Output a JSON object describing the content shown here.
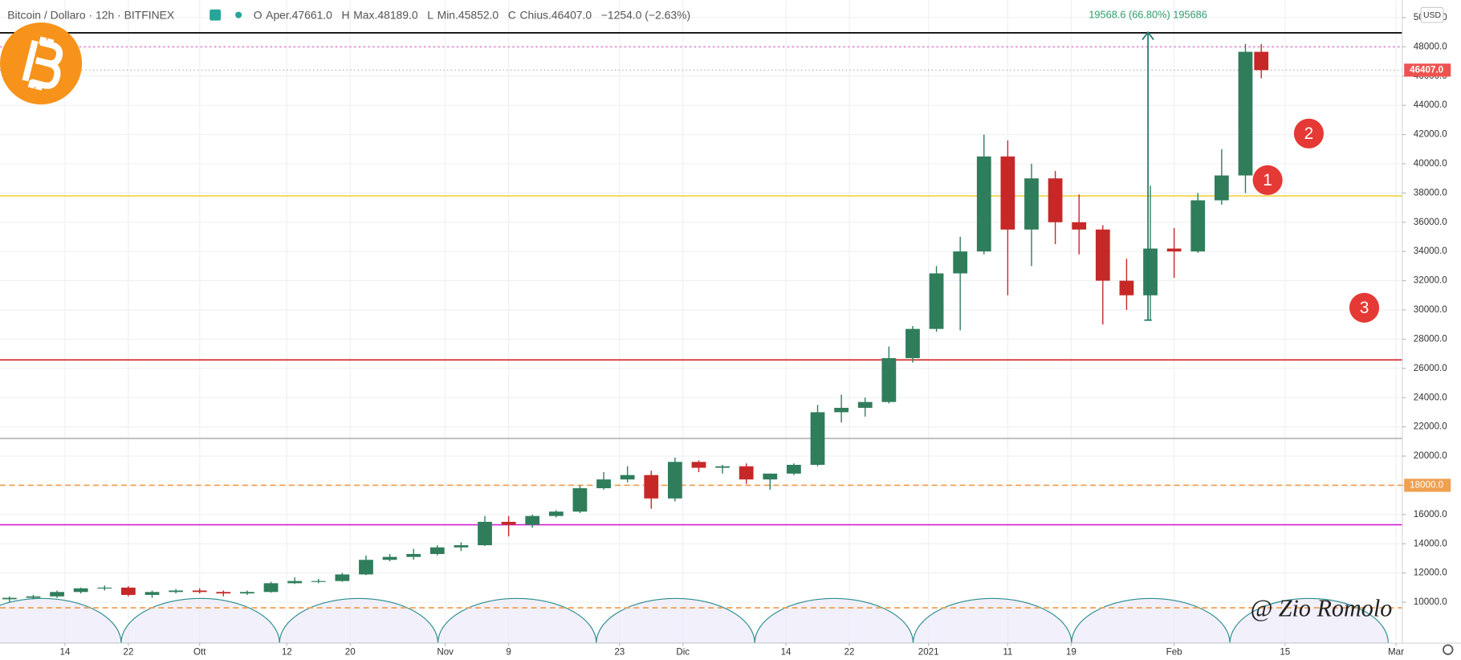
{
  "header": {
    "symbol": "Bitcoin / Dollaro · 12h · BITFINEX",
    "items": [
      "O",
      "Aper.47661.0",
      "H",
      "Max.48189.0",
      "L",
      "Min.45852.0",
      "C",
      "Chius.46407.0",
      "−1254.0 (−2.63%)"
    ]
  },
  "currency": "USD",
  "watermark": "@ Zio Romolo",
  "chart_data": {
    "type": "candlestick",
    "up_color": "#2f7d5b",
    "down_color": "#c62828",
    "x": [
      1,
      4,
      7,
      10,
      13,
      16,
      19,
      22,
      25,
      28,
      31,
      34,
      37,
      40,
      43,
      46,
      49,
      52,
      55,
      58,
      61,
      64,
      67,
      70,
      73,
      76,
      79,
      82,
      85,
      88,
      91,
      94,
      97,
      100,
      103,
      106,
      109,
      112,
      115,
      118,
      121,
      124,
      127,
      130,
      133,
      136,
      139,
      142,
      145,
      148,
      151,
      154,
      157,
      159
    ],
    "open": [
      10200,
      10300,
      10400,
      10700,
      10950,
      11000,
      10500,
      10700,
      10800,
      10700,
      10600,
      10700,
      11300,
      11450,
      11450,
      11900,
      12900,
      13100,
      13300,
      13750,
      13900,
      15500,
      15300,
      15900,
      16200,
      17800,
      18400,
      18700,
      17100,
      19600,
      19200,
      19300,
      18400,
      18800,
      19400,
      23000,
      23300,
      23700,
      26700,
      28700,
      32500,
      34000,
      40500,
      35500,
      39000,
      36000,
      35500,
      32000,
      31000,
      34200,
      34000,
      37500,
      39200,
      47661
    ],
    "high": [
      10400,
      10500,
      10800,
      11000,
      11150,
      11100,
      10800,
      10900,
      10950,
      10800,
      10800,
      11400,
      11700,
      11600,
      12000,
      13200,
      13300,
      13650,
      13900,
      14100,
      15900,
      15900,
      16000,
      16300,
      18000,
      18900,
      19300,
      19000,
      19900,
      19700,
      19400,
      19500,
      18800,
      19500,
      23500,
      24200,
      24000,
      27500,
      28900,
      33000,
      35000,
      42000,
      41600,
      40000,
      39500,
      37900,
      35800,
      33500,
      38500,
      35600,
      38000,
      41000,
      48200,
      48189
    ],
    "low": [
      10000,
      10200,
      10300,
      10600,
      10800,
      10400,
      10300,
      10600,
      10600,
      10400,
      10500,
      10650,
      11250,
      11300,
      11400,
      11850,
      12800,
      12900,
      13200,
      13500,
      13850,
      14500,
      15100,
      15800,
      16100,
      17700,
      18200,
      16400,
      16900,
      18900,
      18800,
      18100,
      17700,
      18700,
      19300,
      22300,
      22700,
      23600,
      26400,
      28500,
      28600,
      33800,
      31000,
      33000,
      34500,
      33800,
      29000,
      30000,
      29300,
      32200,
      33900,
      37200,
      38000,
      45852
    ],
    "close": [
      10300,
      10400,
      10700,
      10950,
      11000,
      10500,
      10700,
      10800,
      10700,
      10600,
      10700,
      11300,
      11450,
      11450,
      11900,
      12900,
      13100,
      13300,
      13750,
      13900,
      15500,
      15300,
      15900,
      16200,
      17800,
      18400,
      18700,
      17100,
      19600,
      19200,
      19300,
      18400,
      18800,
      19400,
      23000,
      23300,
      23700,
      26700,
      28700,
      32500,
      34000,
      40500,
      35500,
      39000,
      36000,
      35500,
      32000,
      31000,
      34200,
      34000,
      37500,
      39200,
      47661,
      46407
    ],
    "xlim": [
      -0.2,
      176.8
    ],
    "xticks": [
      {
        "value": 8,
        "label": "14"
      },
      {
        "value": 16,
        "label": "22"
      },
      {
        "value": 25,
        "label": "Ott"
      },
      {
        "value": 36,
        "label": "12"
      },
      {
        "value": 44,
        "label": "20"
      },
      {
        "value": 56,
        "label": "Nov"
      },
      {
        "value": 64,
        "label": "9"
      },
      {
        "value": 78,
        "label": "23"
      },
      {
        "value": 86,
        "label": "Dic"
      },
      {
        "value": 99,
        "label": "14"
      },
      {
        "value": 107,
        "label": "22"
      },
      {
        "value": 117,
        "label": "2021"
      },
      {
        "value": 127,
        "label": "11"
      },
      {
        "value": 135,
        "label": "19"
      },
      {
        "value": 148,
        "label": "Feb"
      },
      {
        "value": 162,
        "label": "15"
      },
      {
        "value": 176,
        "label": "Mar"
      }
    ],
    "ylim": [
      7200,
      51200
    ],
    "yticks": [
      {
        "value": 10000,
        "label": "10000.0"
      },
      {
        "value": 12000,
        "label": "12000.0"
      },
      {
        "value": 14000,
        "label": "14000.0"
      },
      {
        "value": 16000,
        "label": "16000.0"
      },
      {
        "value": 18000,
        "label": "18000.0"
      },
      {
        "value": 20000,
        "label": "20000.0"
      },
      {
        "value": 22000,
        "label": "22000.0"
      },
      {
        "value": 24000,
        "label": "24000.0"
      },
      {
        "value": 26000,
        "label": "26000.0"
      },
      {
        "value": 28000,
        "label": "28000.0"
      },
      {
        "value": 30000,
        "label": "30000.0"
      },
      {
        "value": 32000,
        "label": "32000.0"
      },
      {
        "value": 34000,
        "label": "34000.0"
      },
      {
        "value": 36000,
        "label": "36000.0"
      },
      {
        "value": 38000,
        "label": "38000.0"
      },
      {
        "value": 40000,
        "label": "40000.0"
      },
      {
        "value": 42000,
        "label": "42000.0"
      },
      {
        "value": 44000,
        "label": "44000.0"
      },
      {
        "value": 46000,
        "label": "46000.0"
      },
      {
        "value": 48000,
        "label": "48000.0"
      },
      {
        "value": 50000,
        "label": "50000.0"
      }
    ],
    "grid": true,
    "price_tag": {
      "value": 46407,
      "label": "46407.0",
      "color": "#ef5350"
    },
    "levels": [
      {
        "value": 48960,
        "color": "#000000",
        "style": "solid"
      },
      {
        "value": 48000,
        "color": "#e48ad0",
        "style": "dotted"
      },
      {
        "value": 37800,
        "color": "#f2d64b",
        "style": "solid"
      },
      {
        "value": 26580,
        "color": "#d32f2f",
        "style": "solid"
      },
      {
        "value": 21200,
        "color": "#b8b8b8",
        "style": "solid"
      },
      {
        "value": 18000,
        "color": "#f0a050",
        "style": "dashed",
        "label": "18000.0"
      },
      {
        "value": 15300,
        "color": "#d020d0",
        "style": "solid"
      },
      {
        "value": 9620,
        "color": "#f0a050",
        "style": "dashed"
      }
    ],
    "measure": {
      "x": 144.7,
      "from": 29300,
      "to": 49000,
      "label": "19568.6 (66.80%) 195686",
      "color": "#1f7a6e"
    },
    "badges": [
      {
        "label": "1",
        "x": 159.8,
        "y": 38880
      },
      {
        "label": "2",
        "x": 165,
        "y": 42070
      },
      {
        "label": "3",
        "x": 172,
        "y": 30150
      }
    ]
  }
}
